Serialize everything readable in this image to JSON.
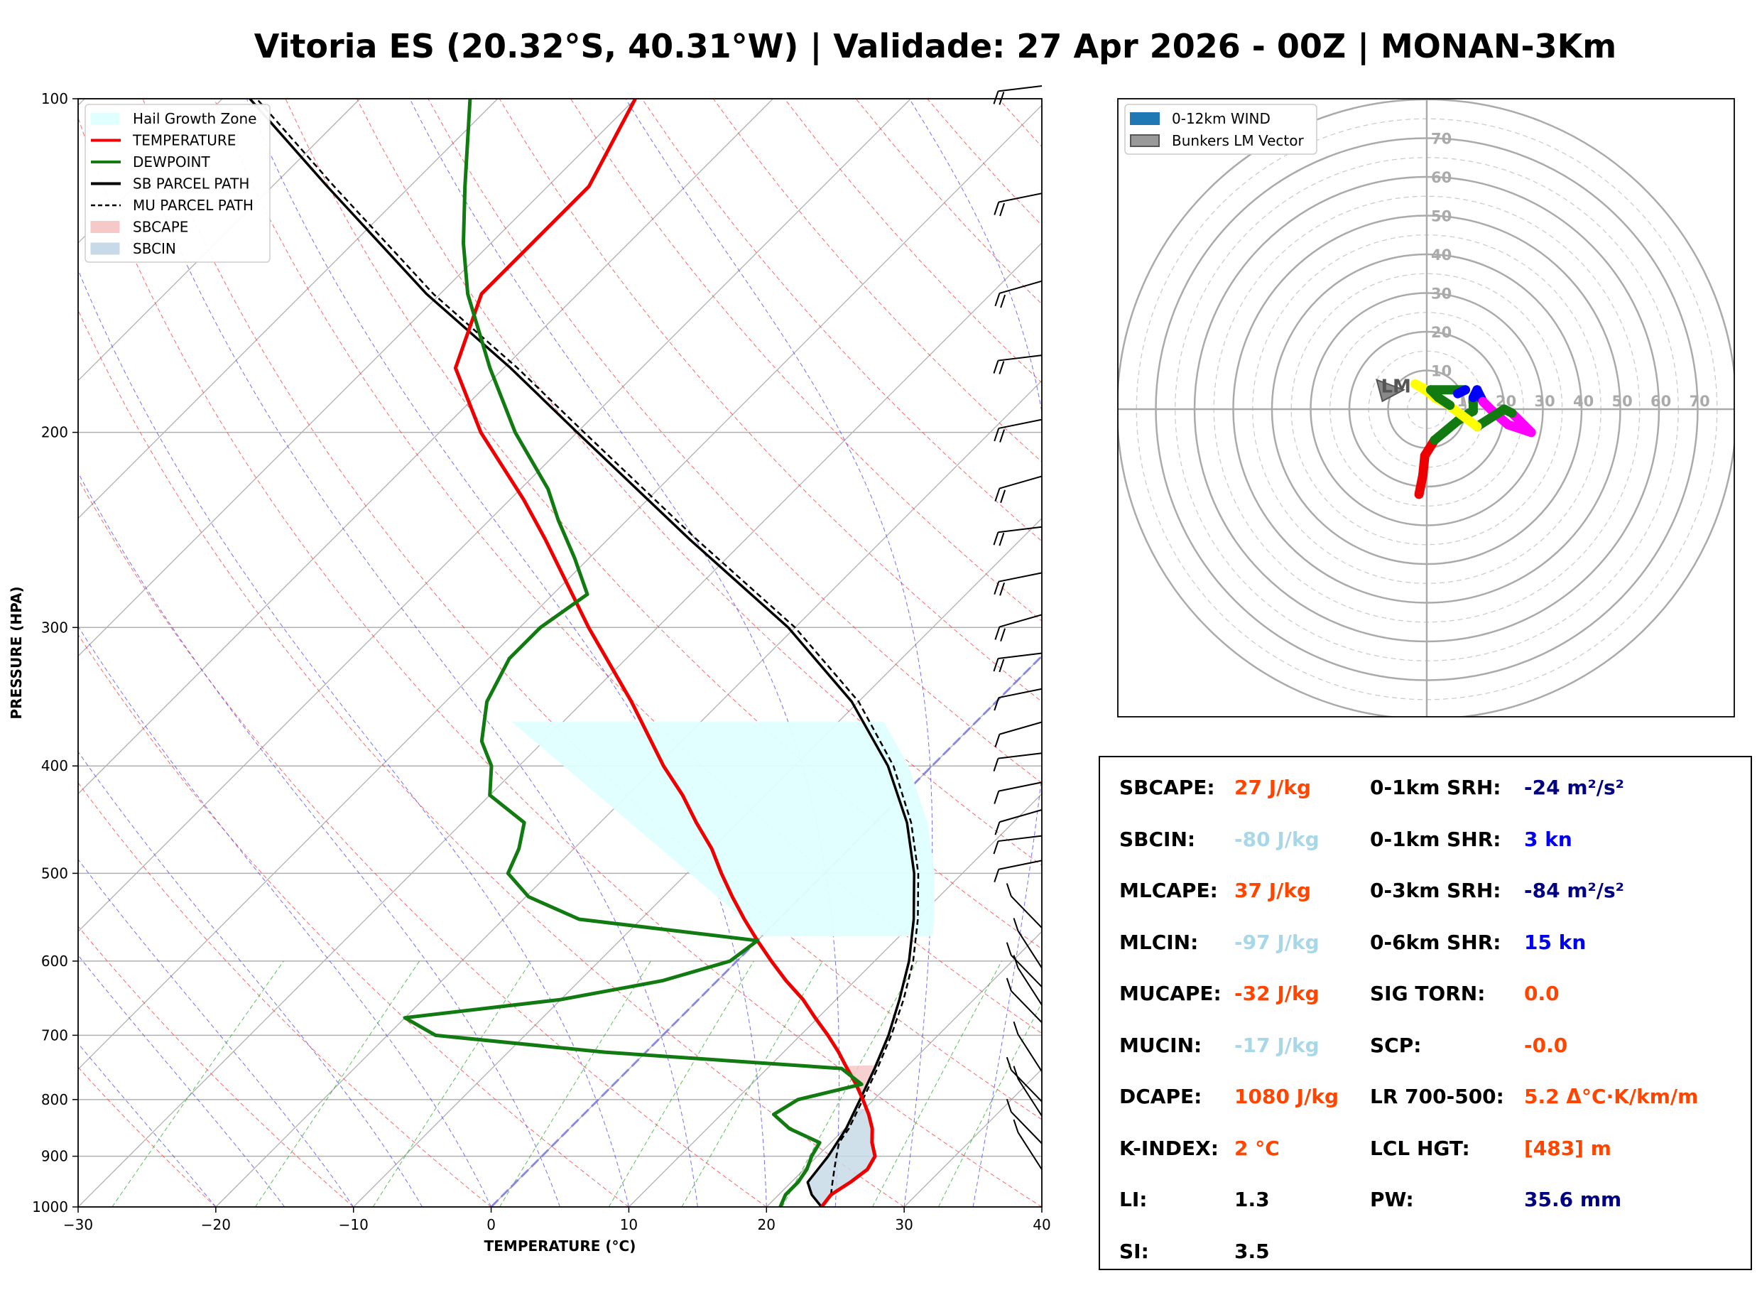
{
  "title": "Vitoria ES (20.32°S, 40.31°W) | Validade: 27 Apr 2026 - 00Z | MONAN-3Km",
  "skewt": {
    "xlabel": "TEMPERATURE (°C)",
    "ylabel": "PRESSURE (HPA)",
    "pressure_ticks": [
      100,
      200,
      300,
      400,
      500,
      600,
      700,
      800,
      900,
      1000
    ],
    "temp_ticks": [
      -30,
      -20,
      -10,
      0,
      10,
      20,
      30,
      40
    ],
    "legend": [
      {
        "label": "Hail Growth Zone",
        "color": "#e0ffff",
        "style": "patch"
      },
      {
        "label": "TEMPERATURE",
        "color": "#ee0000",
        "style": "line"
      },
      {
        "label": "DEWPOINT",
        "color": "#117a11",
        "style": "line"
      },
      {
        "label": "SB PARCEL PATH",
        "color": "#000000",
        "style": "line"
      },
      {
        "label": "MU PARCEL PATH",
        "color": "#000000",
        "style": "dashed"
      },
      {
        "label": "SBCAPE",
        "color": "#f7c8c8",
        "style": "patch"
      },
      {
        "label": "SBCIN",
        "color": "#c8dae8",
        "style": "patch"
      }
    ]
  },
  "hodograph": {
    "legend": [
      {
        "label": "0-12km WIND",
        "color": "#1f77b4"
      },
      {
        "label": "Bunkers LM Vector",
        "color": "#999999"
      }
    ],
    "ring_labels": [
      "10",
      "20",
      "30",
      "40",
      "50",
      "60",
      "70"
    ],
    "lm_label": "LM"
  },
  "indices": {
    "left": [
      {
        "label": "SBCAPE:",
        "value": "27 J/kg",
        "color": "#ff4500"
      },
      {
        "label": "SBCIN:",
        "value": "-80 J/kg",
        "color": "#a8d8e8"
      },
      {
        "label": "MLCAPE:",
        "value": "37 J/kg",
        "color": "#ff4500"
      },
      {
        "label": "MLCIN:",
        "value": "-97 J/kg",
        "color": "#a8d8e8"
      },
      {
        "label": "MUCAPE:",
        "value": "-32 J/kg",
        "color": "#ff4500"
      },
      {
        "label": "MUCIN:",
        "value": "-17 J/kg",
        "color": "#a8d8e8"
      },
      {
        "label": "DCAPE:",
        "value": "1080 J/kg",
        "color": "#ff4500"
      },
      {
        "label": "K-INDEX:",
        "value": "2 °C",
        "color": "#ff4500"
      },
      {
        "label": "LI:",
        "value": "1.3",
        "color": "#000000"
      },
      {
        "label": "SI:",
        "value": "3.5",
        "color": "#000000"
      }
    ],
    "right": [
      {
        "label": "0-1km SRH:",
        "value": "-24 m²/s²",
        "color": "#000080"
      },
      {
        "label": "0-1km SHR:",
        "value": "3 kn",
        "color": "#0000ee"
      },
      {
        "label": "0-3km SRH:",
        "value": "-84 m²/s²",
        "color": "#000080"
      },
      {
        "label": "0-6km SHR:",
        "value": "15 kn",
        "color": "#0000ee"
      },
      {
        "label": "SIG TORN:",
        "value": "0.0",
        "color": "#ff4500"
      },
      {
        "label": "SCP:",
        "value": "-0.0",
        "color": "#ff4500"
      },
      {
        "label": "LR 700-500:",
        "value": "5.2 Δ°C·K/km/m",
        "color": "#ff4500"
      },
      {
        "label": "LCL HGT:",
        "value": "[483] m",
        "color": "#ff4500"
      },
      {
        "label": "PW:",
        "value": "35.6 mm",
        "color": "#000080"
      }
    ]
  },
  "chart_data": [
    {
      "type": "line",
      "subtype": "skew-t",
      "xlabel": "TEMPERATURE (°C)",
      "ylabel": "PRESSURE (HPA)",
      "xlim": [
        -30,
        40
      ],
      "ylim": [
        1000,
        100
      ],
      "yscale": "log",
      "series": [
        {
          "name": "TEMPERATURE",
          "points": [
            [
              1000,
              24.0
            ],
            [
              975,
              23.8
            ],
            [
              950,
              24.3
            ],
            [
              925,
              24.6
            ],
            [
              900,
              24.2
            ],
            [
              875,
              23.0
            ],
            [
              850,
              22.0
            ],
            [
              825,
              20.7
            ],
            [
              800,
              19.2
            ],
            [
              775,
              17.6
            ],
            [
              750,
              15.8
            ],
            [
              725,
              14.0
            ],
            [
              700,
              12.0
            ],
            [
              675,
              9.8
            ],
            [
              650,
              7.6
            ],
            [
              625,
              5.0
            ],
            [
              600,
              2.5
            ],
            [
              575,
              0.0
            ],
            [
              550,
              -2.5
            ],
            [
              525,
              -5.0
            ],
            [
              500,
              -7.5
            ],
            [
              475,
              -10.0
            ],
            [
              450,
              -13.0
            ],
            [
              425,
              -16.0
            ],
            [
              400,
              -19.5
            ],
            [
              350,
              -26.5
            ],
            [
              300,
              -35.0
            ],
            [
              250,
              -44.5
            ],
            [
              230,
              -49.0
            ],
            [
              200,
              -57.0
            ],
            [
              175,
              -63.5
            ],
            [
              150,
              -67.0
            ],
            [
              135,
              -67.0
            ],
            [
              120,
              -67.0
            ],
            [
              100,
              -70.0
            ]
          ]
        },
        {
          "name": "DEWPOINT",
          "points": [
            [
              1000,
              21.0
            ],
            [
              975,
              20.5
            ],
            [
              950,
              20.5
            ],
            [
              925,
              20.2
            ],
            [
              900,
              19.6
            ],
            [
              875,
              19.2
            ],
            [
              850,
              16.0
            ],
            [
              825,
              13.8
            ],
            [
              800,
              14.5
            ],
            [
              775,
              18.0
            ],
            [
              750,
              15.4
            ],
            [
              725,
              -3.0
            ],
            [
              700,
              -16.5
            ],
            [
              675,
              -20.0
            ],
            [
              650,
              -10.0
            ],
            [
              625,
              -4.0
            ],
            [
              600,
              -0.5
            ],
            [
              575,
              0.0
            ],
            [
              550,
              -14.5
            ],
            [
              525,
              -19.8
            ],
            [
              500,
              -23.0
            ],
            [
              475,
              -24.0
            ],
            [
              450,
              -25.5
            ],
            [
              425,
              -30.0
            ],
            [
              400,
              -32.0
            ],
            [
              380,
              -34.5
            ],
            [
              350,
              -37.0
            ],
            [
              320,
              -38.5
            ],
            [
              300,
              -38.5
            ],
            [
              280,
              -37.5
            ],
            [
              260,
              -41.0
            ],
            [
              240,
              -45.0
            ],
            [
              225,
              -48.0
            ],
            [
              200,
              -54.5
            ],
            [
              175,
              -61.0
            ],
            [
              150,
              -68.0
            ],
            [
              135,
              -72.0
            ],
            [
              120,
              -76.0
            ],
            [
              100,
              -82.0
            ]
          ]
        },
        {
          "name": "SB PARCEL PATH",
          "points": [
            [
              1000,
              24.0
            ],
            [
              975,
              22.4
            ],
            [
              950,
              21.2
            ],
            [
              925,
              21.0
            ],
            [
              900,
              20.8
            ],
            [
              850,
              20.1
            ],
            [
              800,
              19.0
            ],
            [
              750,
              17.8
            ],
            [
              700,
              16.4
            ],
            [
              650,
              14.6
            ],
            [
              600,
              12.5
            ],
            [
              550,
              9.8
            ],
            [
              500,
              6.5
            ],
            [
              450,
              2.3
            ],
            [
              400,
              -3.2
            ],
            [
              350,
              -10.5
            ],
            [
              300,
              -20.5
            ],
            [
              250,
              -34.0
            ],
            [
              200,
              -50.0
            ],
            [
              175,
              -59.5
            ],
            [
              150,
              -71.0
            ],
            [
              120,
              -86.0
            ],
            [
              100,
              -98.0
            ]
          ]
        },
        {
          "name": "MU PARCEL PATH",
          "points": [
            [
              975,
              23.8
            ],
            [
              950,
              23.0
            ],
            [
              925,
              22.2
            ],
            [
              900,
              21.4
            ],
            [
              875,
              20.6
            ],
            [
              850,
              20.3
            ],
            [
              800,
              19.2
            ],
            [
              750,
              18.0
            ],
            [
              700,
              16.6
            ],
            [
              650,
              14.9
            ],
            [
              600,
              12.8
            ],
            [
              550,
              10.1
            ],
            [
              500,
              6.8
            ],
            [
              450,
              2.6
            ],
            [
              400,
              -2.8
            ],
            [
              350,
              -10.0
            ],
            [
              300,
              -20.0
            ],
            [
              250,
              -33.5
            ],
            [
              200,
              -49.5
            ],
            [
              175,
              -59.0
            ],
            [
              150,
              -70.5
            ],
            [
              120,
              -85.5
            ],
            [
              100,
              -97.5
            ]
          ]
        }
      ],
      "hail_growth_zone": {
        "bottom_hpa": 570,
        "top_hpa": 365
      }
    },
    {
      "type": "line",
      "subtype": "hodograph",
      "units": "kn",
      "rings": [
        10,
        20,
        30,
        40,
        50,
        60,
        70,
        80
      ],
      "series": [
        {
          "name": "0-12km WIND",
          "points": [
            [
              -2,
              -22
            ],
            [
              -1,
              -17
            ],
            [
              -0.5,
              -12
            ],
            [
              2,
              -8
            ],
            [
              5,
              -5.5
            ],
            [
              8,
              -3
            ],
            [
              11,
              -1
            ],
            [
              12,
              -0.5
            ],
            [
              12,
              3
            ],
            [
              13,
              5
            ],
            [
              14.5,
              2
            ],
            [
              17,
              -0.5
            ],
            [
              21,
              -4
            ],
            [
              27,
              -6
            ],
            [
              22,
              -1
            ],
            [
              20,
              0
            ],
            [
              13,
              -4.5
            ],
            [
              9,
              -1.5
            ],
            [
              5,
              1.5
            ],
            [
              2,
              3
            ],
            [
              -1,
              5.5
            ],
            [
              -3,
              6.5
            ],
            [
              6,
              1
            ],
            [
              3,
              3
            ],
            [
              1,
              5
            ],
            [
              10,
              5
            ],
            [
              8,
              4
            ]
          ]
        }
      ],
      "bunkers_lm": [
        -10,
        6
      ]
    }
  ]
}
